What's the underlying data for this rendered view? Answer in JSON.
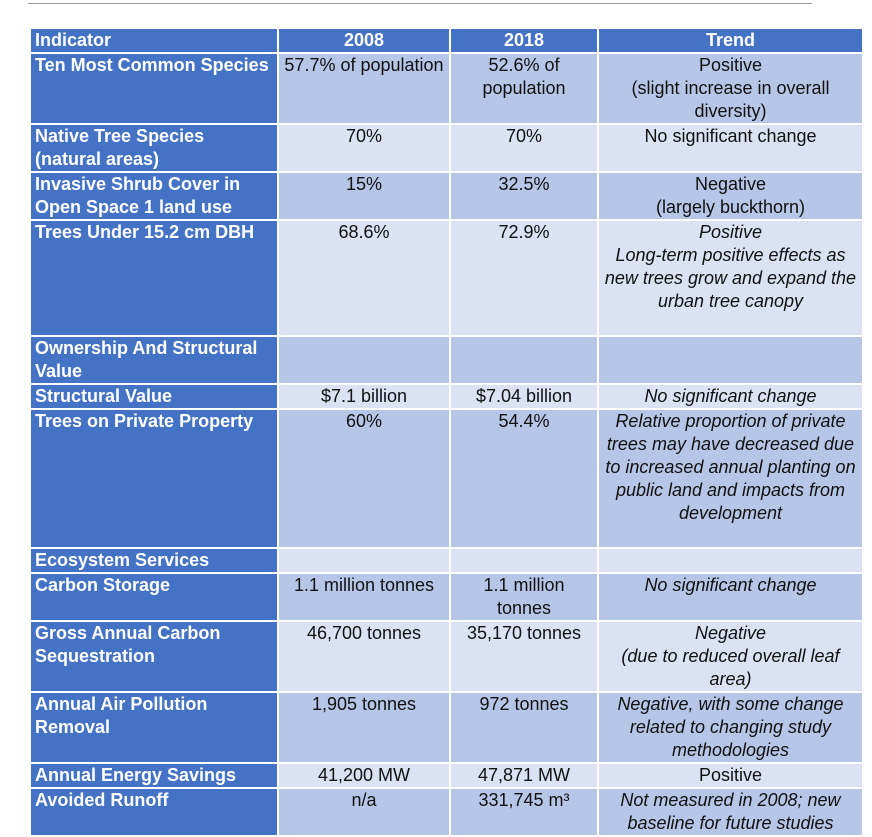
{
  "table": {
    "header": [
      "Indicator",
      "2008",
      "2018",
      "Trend"
    ],
    "rows": [
      [
        "Ten Most Common Species",
        "57.7% of population",
        "52.6% of population",
        "Positive\n(slight increase in overall diversity)"
      ],
      [
        "Native Tree Species (natural areas)",
        "70%",
        "70%",
        "No significant change"
      ],
      [
        "Invasive Shrub Cover in Open Space 1 land use",
        "15%",
        "32.5%",
        "Negative\n(largely buckthorn)"
      ],
      [
        "Trees Under 15.2 cm DBH",
        "68.6%",
        "72.9%",
        "Positive\nLong-term positive effects as new trees grow and expand the urban tree canopy"
      ],
      [
        "Ownership And Structural Value",
        null,
        null,
        null
      ],
      [
        "Structural Value",
        "$7.1 billion",
        "$7.04 billion",
        "No significant change"
      ],
      [
        "Trees on Private Property",
        "60%",
        "54.4%",
        "Relative proportion of private trees may have decreased due to increased annual planting on public land and impacts from development"
      ],
      [
        "Ecosystem Services",
        null,
        null,
        null
      ],
      [
        "Carbon Storage",
        "1.1 million tonnes",
        "1.1 million tonnes",
        "No significant change"
      ],
      [
        "Gross Annual Carbon Sequestration",
        "46,700 tonnes",
        "35,170 tonnes",
        "Negative\n(due to reduced overall leaf area)"
      ],
      [
        "Annual Air Pollution Removal",
        "1,905 tonnes",
        "972 tonnes",
        "Negative, with some change related to changing study methodologies"
      ],
      [
        "Annual Energy Savings",
        "41,200 MW",
        "47,871 MW",
        "Positive"
      ],
      [
        "Avoided Runoff",
        "n/a",
        "331,745 m³",
        "Not measured in 2008; new baseline for future studies"
      ]
    ]
  }
}
